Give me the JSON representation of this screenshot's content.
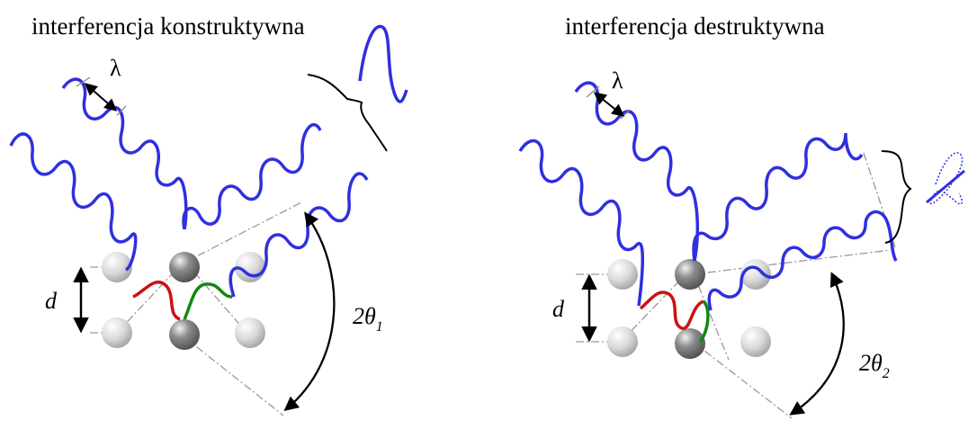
{
  "panels": [
    {
      "title": "interferencja konstruktywna",
      "wavelength_label": "λ",
      "spacing_label": "d",
      "angle_label": "2θ",
      "angle_subscript": "1",
      "resulting_wave": "amplified"
    },
    {
      "title": "interferencja destruktywna",
      "wavelength_label": "λ",
      "spacing_label": "d",
      "angle_label": "2θ",
      "angle_subscript": "2",
      "resulting_wave": "cancelled"
    }
  ],
  "colors": {
    "wave": "#2f2fe0",
    "path_difference_upper": "#cc1111",
    "path_difference_lower": "#118811",
    "guide_line": "#999999",
    "atom_light": "#dcdcdc",
    "atom_dark": "#7a7a7a"
  }
}
